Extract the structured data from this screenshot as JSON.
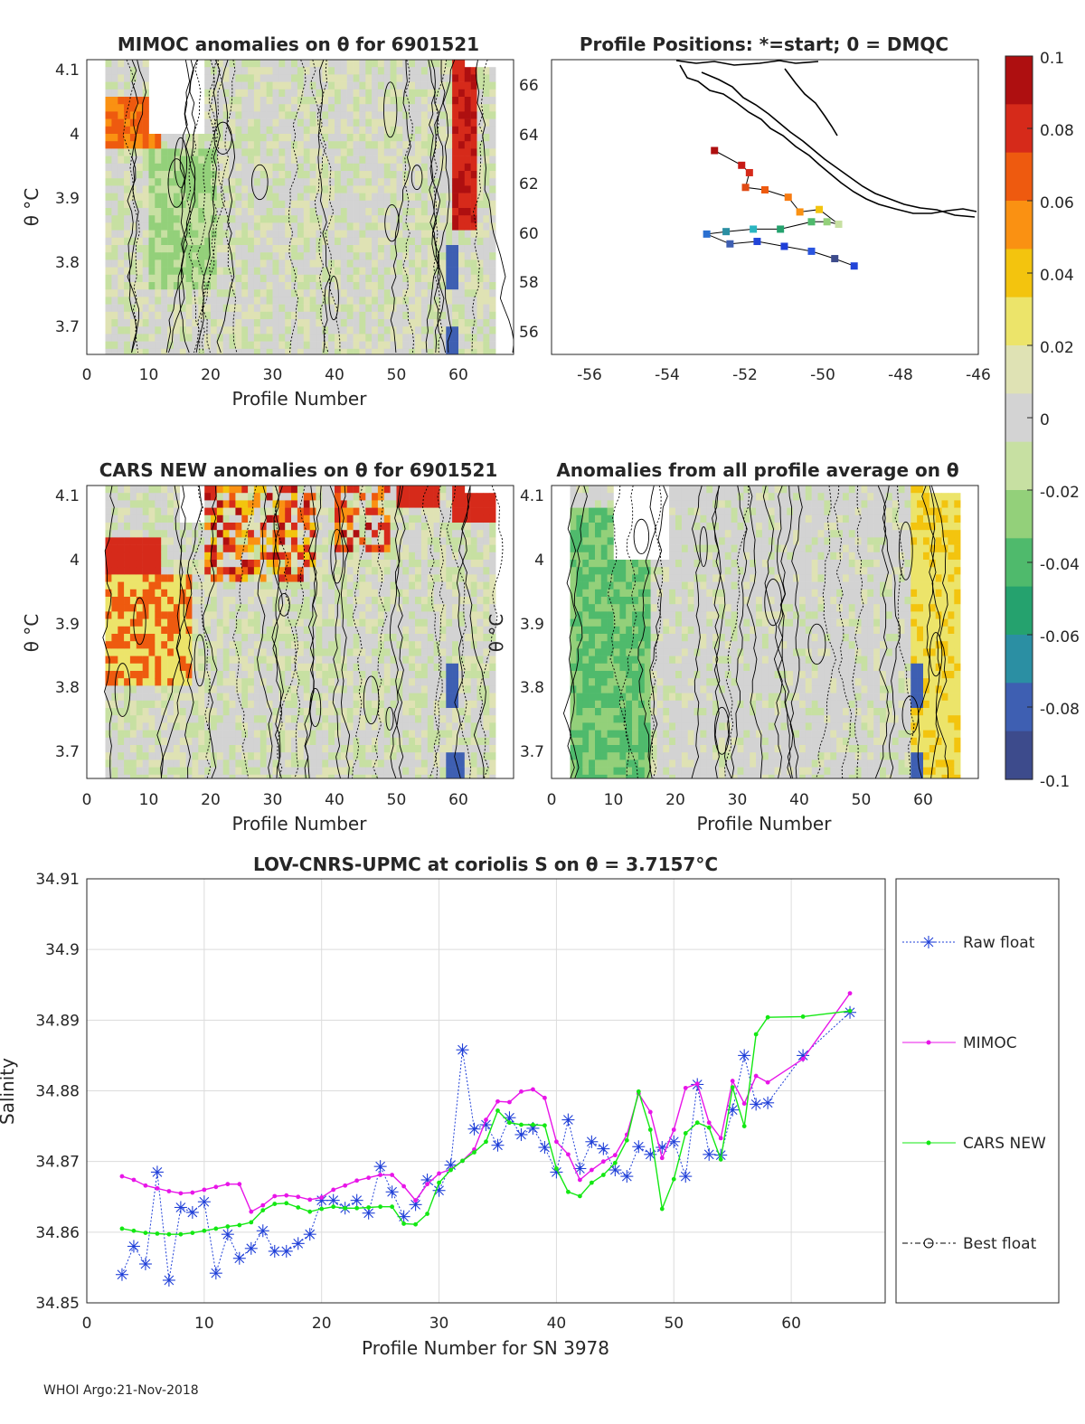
{
  "panels": {
    "mimoc": {
      "title": "MIMOC anomalies on θ  for 6901521",
      "xlabel": "Profile Number",
      "ylabel": "θ °C",
      "xticks": [
        "0",
        "10",
        "20",
        "30",
        "40",
        "50",
        "60"
      ],
      "yticks": [
        "4.1",
        "4",
        "3.9",
        "3.8",
        "3.7"
      ]
    },
    "positions": {
      "title": "Profile Positions: *=start; 0 = DMQC",
      "xticks": [
        "-56",
        "-54",
        "-52",
        "-50",
        "-48",
        "-46"
      ],
      "yticks": [
        "66",
        "64",
        "62",
        "60",
        "58",
        "56"
      ]
    },
    "cars": {
      "title": "CARS NEW anomalies on θ for 6901521",
      "xlabel": "Profile Number",
      "ylabel": "θ °C",
      "xticks": [
        "0",
        "10",
        "20",
        "30",
        "40",
        "50",
        "60"
      ],
      "yticks": [
        "4.1",
        "4",
        "3.9",
        "3.8",
        "3.7"
      ]
    },
    "allavg": {
      "title": "Anomalies from all profile average on θ",
      "xlabel": "Profile Number",
      "ylabel": "θ °C",
      "xticks": [
        "0",
        "10",
        "20",
        "30",
        "40",
        "50",
        "60"
      ],
      "yticks": [
        "4.1",
        "4",
        "3.9",
        "3.8",
        "3.7"
      ]
    }
  },
  "colorbar": {
    "ticks": [
      "0.1",
      "0.08",
      "0.06",
      "0.04",
      "0.02",
      "0",
      "-0.02",
      "-0.04",
      "-0.06",
      "-0.08",
      "-0.1"
    ],
    "colors": [
      "#ae0f10",
      "#d62a1a",
      "#ee5a0f",
      "#fa9112",
      "#f3c40e",
      "#ece46a",
      "#dfe2b4",
      "#d3d3d3",
      "#c7e0a2",
      "#93d07a",
      "#4fba6c",
      "#25a26e",
      "#2b8fa3",
      "#3e5fb2",
      "#3d4b8c"
    ]
  },
  "footer": "WHOI Argo:21-Nov-2018",
  "chart_data": {
    "type": "line",
    "title": "LOV-CNRS-UPMC at coriolis S on θ = 3.7157°C",
    "xlabel": "Profile Number for SN 3978",
    "ylabel": "Salinity",
    "xlim": [
      0,
      68
    ],
    "ylim": [
      34.85,
      34.91
    ],
    "xticks": [
      "0",
      "10",
      "20",
      "30",
      "40",
      "50",
      "60"
    ],
    "yticks": [
      "34.91",
      "34.9",
      "34.89",
      "34.88",
      "34.87",
      "34.86",
      "34.85"
    ],
    "grid": true,
    "legend_position": "outside-right",
    "series": [
      {
        "name": "Raw float",
        "color": "#1f3fd8",
        "x": [
          3,
          4,
          5,
          6,
          7,
          8,
          9,
          10,
          11,
          12,
          13,
          14,
          15,
          16,
          17,
          18,
          19,
          20,
          21,
          22,
          23,
          24,
          25,
          26,
          27,
          28,
          29,
          30,
          31,
          32,
          33,
          34,
          35,
          36,
          37,
          38,
          39,
          40,
          41,
          42,
          43,
          44,
          45,
          46,
          47,
          48,
          49,
          50,
          51,
          52,
          53,
          54,
          55,
          56,
          57,
          58,
          61,
          65
        ],
        "y": [
          34.854,
          34.858,
          34.8555,
          34.8685,
          34.8532,
          34.8635,
          34.8628,
          34.8643,
          34.8542,
          34.8597,
          34.8563,
          34.8577,
          34.8602,
          34.8573,
          34.8573,
          34.8584,
          34.8597,
          34.8645,
          34.8645,
          34.8634,
          34.8645,
          34.8627,
          34.8693,
          34.8657,
          34.8622,
          34.8639,
          34.8674,
          34.8659,
          34.8695,
          34.8858,
          34.8746,
          34.8752,
          34.8723,
          34.8762,
          34.8738,
          34.8747,
          34.872,
          34.8685,
          34.8759,
          34.869,
          34.8728,
          34.8718,
          34.8688,
          34.8679,
          34.8721,
          34.871,
          34.872,
          34.8728,
          34.8679,
          34.8809,
          34.871,
          34.8709,
          34.8773,
          34.885,
          34.8781,
          34.8783,
          34.885,
          34.8911
        ]
      },
      {
        "name": "MIMOC",
        "color": "#e815e8",
        "x": [
          3,
          4,
          5,
          6,
          7,
          8,
          9,
          10,
          11,
          12,
          13,
          14,
          15,
          16,
          17,
          18,
          19,
          20,
          21,
          22,
          23,
          24,
          25,
          26,
          27,
          28,
          29,
          30,
          31,
          32,
          33,
          34,
          35,
          36,
          37,
          38,
          39,
          40,
          41,
          42,
          43,
          44,
          45,
          46,
          47,
          48,
          49,
          50,
          51,
          52,
          53,
          54,
          55,
          56,
          57,
          58,
          61,
          65
        ],
        "y": [
          34.8679,
          34.8674,
          34.8666,
          34.8662,
          34.8658,
          34.8655,
          34.8656,
          34.866,
          34.8664,
          34.8668,
          34.8668,
          34.8629,
          34.8638,
          34.8651,
          34.8652,
          34.865,
          34.8646,
          34.8649,
          34.866,
          34.8666,
          34.8673,
          34.8677,
          34.8681,
          34.8681,
          34.8665,
          34.8645,
          34.8668,
          34.8683,
          34.8689,
          34.8701,
          34.8717,
          34.8759,
          34.8785,
          34.8784,
          34.8799,
          34.8802,
          34.879,
          34.8728,
          34.871,
          34.8674,
          34.8688,
          34.87,
          34.8709,
          34.8738,
          34.8796,
          34.877,
          34.8705,
          34.8745,
          34.8804,
          34.881,
          34.8755,
          34.8733,
          34.8814,
          34.8782,
          34.8821,
          34.8812,
          34.8845,
          34.8938
        ]
      },
      {
        "name": "CARS NEW",
        "color": "#13e813",
        "x": [
          3,
          4,
          5,
          6,
          7,
          8,
          9,
          10,
          11,
          12,
          13,
          14,
          15,
          16,
          17,
          18,
          19,
          20,
          21,
          22,
          23,
          24,
          25,
          26,
          27,
          28,
          29,
          30,
          31,
          32,
          33,
          34,
          35,
          36,
          37,
          38,
          39,
          40,
          41,
          42,
          43,
          44,
          45,
          46,
          47,
          48,
          49,
          50,
          51,
          52,
          53,
          54,
          55,
          56,
          57,
          58,
          61,
          65
        ],
        "y": [
          34.8605,
          34.8602,
          34.8599,
          34.8598,
          34.8597,
          34.8597,
          34.8599,
          34.8602,
          34.8605,
          34.8608,
          34.861,
          34.8614,
          34.8631,
          34.864,
          34.8641,
          34.8635,
          34.8629,
          34.8633,
          34.8636,
          34.8634,
          34.8634,
          34.8635,
          34.8636,
          34.8636,
          34.8612,
          34.8611,
          34.8626,
          34.867,
          34.8688,
          34.8701,
          34.8713,
          34.8728,
          34.8772,
          34.8755,
          34.8752,
          34.8752,
          34.8751,
          34.869,
          34.8657,
          34.8651,
          34.867,
          34.8681,
          34.8698,
          34.873,
          34.8799,
          34.8745,
          34.8633,
          34.8675,
          34.874,
          34.8755,
          34.8748,
          34.8703,
          34.8805,
          34.875,
          34.888,
          34.8904,
          34.8905,
          34.8913
        ]
      },
      {
        "name": "Best float",
        "color": "#000000",
        "x": [],
        "y": []
      }
    ]
  }
}
